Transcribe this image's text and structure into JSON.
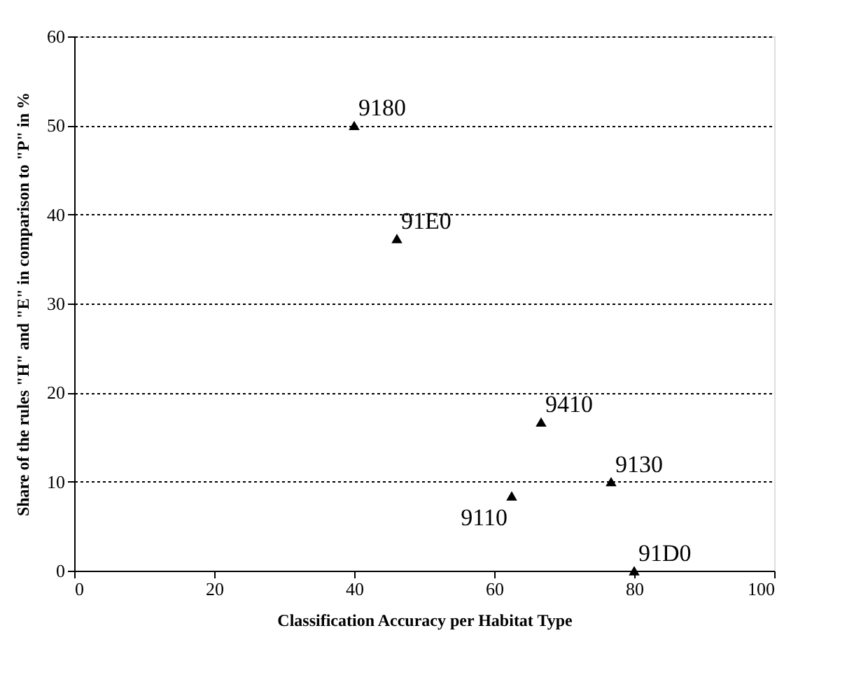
{
  "chart_data": {
    "type": "scatter",
    "xlabel": "Classification Accuracy per Habitat Type",
    "ylabel": "Share of the rules \"H\" and \"E\" in comparison to \"P\" in %",
    "x": [
      40,
      46.1,
      66.7,
      76.7,
      62.5,
      80
    ],
    "series": [
      {
        "color": "#000000",
        "values": [
          50,
          37.3,
          16.7,
          10,
          8.4,
          0
        ]
      }
    ],
    "annotations": [
      {
        "text": "9180",
        "x": 40,
        "y": 50
      },
      {
        "text": "91E0",
        "x": 46.1,
        "y": 37.3
      },
      {
        "text": "9410",
        "x": 66.7,
        "y": 16.7
      },
      {
        "text": "9130",
        "x": 76.7,
        "y": 10
      },
      {
        "text": "9110",
        "x": 62.5,
        "y": 8.4
      },
      {
        "text": "91D0",
        "x": 80,
        "y": 0
      }
    ],
    "xlim": [
      0,
      100
    ],
    "xticks": [
      0,
      20,
      40,
      60,
      80,
      100
    ],
    "ylim": [
      0,
      60
    ],
    "yticks": [
      0,
      10,
      20,
      30,
      40,
      50,
      60
    ],
    "grid": "y",
    "marker": "triangle"
  }
}
